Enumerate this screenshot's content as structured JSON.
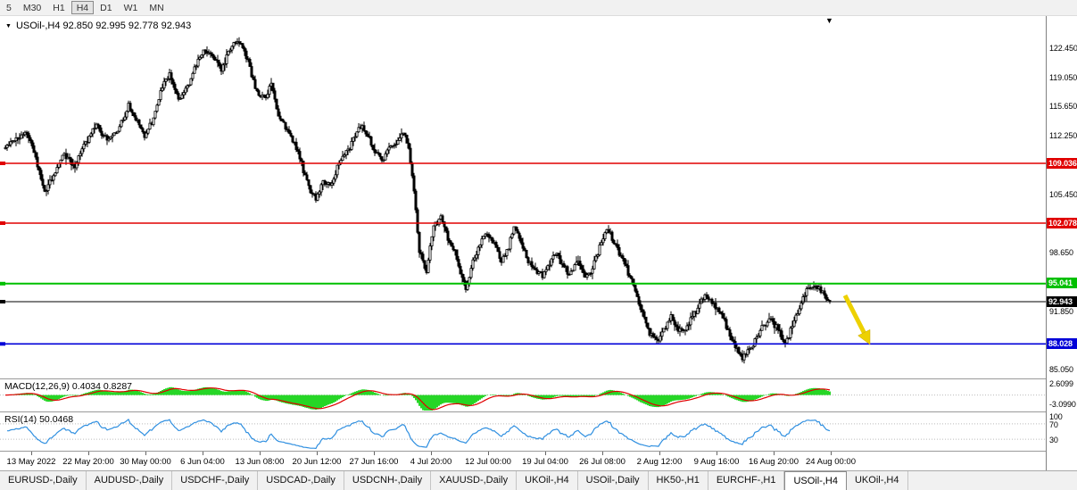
{
  "toolbar": {
    "timeframes": [
      "5",
      "M30",
      "H1",
      "H4",
      "D1",
      "W1",
      "MN"
    ],
    "active_index": 3
  },
  "legend": {
    "icon": "chart-symbol-triangle",
    "text": "USOil-,H4 92.850 92.995 92.778 92.943"
  },
  "panels": {
    "macd": {
      "label": "MACD(12,26,9) 0.4034 0.8287",
      "axis_max": "2.6099",
      "axis_min": "-3.0990"
    },
    "rsi": {
      "label": "RSI(14) 50.0468",
      "axis_labels": [
        "100",
        "70",
        "30"
      ]
    }
  },
  "tabs": {
    "items": [
      "EURUSD-,Daily",
      "AUDUSD-,Daily",
      "USDCHF-,Daily",
      "USDCAD-,Daily",
      "USDCNH-,Daily",
      "XAUUSD-,Daily",
      "UKOil-,H4",
      "USOil-,Daily",
      "HK50-,H1",
      "EURCHF-,H1",
      "USOil-,H4",
      "UKOil-,H4"
    ],
    "active_index": 10
  },
  "chart_data": {
    "type": "candlestick",
    "symbol": "USOil-",
    "timeframe": "H4",
    "current_ohlc": {
      "open": 92.85,
      "high": 92.995,
      "low": 92.778,
      "close": 92.943
    },
    "y_axis": {
      "visible_range": [
        84.0,
        126.2
      ],
      "tick_step": 3.4,
      "plain_labels": [
        122.45,
        119.05,
        115.65,
        112.25,
        105.45,
        98.65,
        91.85,
        85.05
      ]
    },
    "levels": [
      {
        "price": 109.036,
        "label": "109.036",
        "color": "#E00000",
        "width": 1.6
      },
      {
        "price": 102.078,
        "label": "102.078",
        "color": "#E00000",
        "width": 1.6
      },
      {
        "price": 95.041,
        "label": "95.041",
        "color": "#00C000",
        "width": 2
      },
      {
        "price": 92.943,
        "label": "92.943",
        "color": "#000000",
        "width": 1
      },
      {
        "price": 88.028,
        "label": "88.028",
        "color": "#0000D8",
        "width": 1.6
      }
    ],
    "x_labels": [
      "13 May 2022",
      "22 May 20:00",
      "30 May 00:00",
      "6 Jun 04:00",
      "13 Jun 08:00",
      "20 Jun 12:00",
      "27 Jun 16:00",
      "4 Jul 20:00",
      "12 Jul 00:00",
      "19 Jul 04:00",
      "26 Jul 08:00",
      "2 Aug 12:00",
      "9 Aug 16:00",
      "16 Aug 20:00",
      "24 Aug 00:00"
    ],
    "indicators": {
      "macd": {
        "params": "12,26,9",
        "values": [
          0.4034,
          0.8287
        ],
        "axis_max": 2.6099,
        "axis_min": -3.099,
        "histogram_color": "#00CE00",
        "signal_color": "#E00000"
      },
      "rsi": {
        "params": "14",
        "value": 50.0468,
        "levels": [
          70,
          30
        ],
        "line_color": "#2F8FE0"
      }
    },
    "annotations": [
      {
        "type": "arrow-down-right",
        "color": "#EDD100",
        "near_price_from": 93.8,
        "near_price_to": 88.6
      }
    ],
    "price_path": [
      [
        6,
        110.8
      ],
      [
        18,
        111.8
      ],
      [
        30,
        112.8
      ],
      [
        40,
        109.5
      ],
      [
        50,
        105.8
      ],
      [
        60,
        107.5
      ],
      [
        72,
        110.2
      ],
      [
        84,
        108.8
      ],
      [
        96,
        111.5
      ],
      [
        108,
        113.4
      ],
      [
        120,
        111.8
      ],
      [
        132,
        112.8
      ],
      [
        144,
        115.7
      ],
      [
        154,
        113.9
      ],
      [
        162,
        112.2
      ],
      [
        172,
        114.2
      ],
      [
        182,
        118.0
      ],
      [
        190,
        119.4
      ],
      [
        200,
        116.4
      ],
      [
        210,
        117.8
      ],
      [
        220,
        120.6
      ],
      [
        230,
        122.4
      ],
      [
        240,
        121.0
      ],
      [
        248,
        119.8
      ],
      [
        256,
        122.0
      ],
      [
        264,
        123.3
      ],
      [
        272,
        122.6
      ],
      [
        280,
        120.2
      ],
      [
        288,
        117.3
      ],
      [
        296,
        116.6
      ],
      [
        304,
        118.2
      ],
      [
        312,
        114.6
      ],
      [
        320,
        113.2
      ],
      [
        328,
        111.8
      ],
      [
        336,
        109.6
      ],
      [
        346,
        106.2
      ],
      [
        354,
        104.9
      ],
      [
        362,
        107.2
      ],
      [
        370,
        106.4
      ],
      [
        378,
        108.6
      ],
      [
        386,
        109.8
      ],
      [
        394,
        111.2
      ],
      [
        404,
        113.2
      ],
      [
        412,
        112.4
      ],
      [
        420,
        110.4
      ],
      [
        428,
        109.4
      ],
      [
        436,
        110.8
      ],
      [
        444,
        111.4
      ],
      [
        452,
        112.4
      ],
      [
        458,
        111.0
      ],
      [
        464,
        106.0
      ],
      [
        470,
        98.8
      ],
      [
        478,
        96.6
      ],
      [
        486,
        101.8
      ],
      [
        494,
        102.6
      ],
      [
        502,
        100.4
      ],
      [
        510,
        98.8
      ],
      [
        516,
        96.0
      ],
      [
        522,
        94.4
      ],
      [
        530,
        97.6
      ],
      [
        538,
        99.8
      ],
      [
        546,
        100.8
      ],
      [
        554,
        99.6
      ],
      [
        562,
        97.6
      ],
      [
        570,
        99.2
      ],
      [
        576,
        101.8
      ],
      [
        584,
        99.8
      ],
      [
        592,
        97.6
      ],
      [
        600,
        96.8
      ],
      [
        608,
        96.0
      ],
      [
        616,
        97.6
      ],
      [
        624,
        98.6
      ],
      [
        632,
        96.8
      ],
      [
        640,
        96.2
      ],
      [
        648,
        98.0
      ],
      [
        656,
        95.6
      ],
      [
        664,
        96.8
      ],
      [
        672,
        99.4
      ],
      [
        680,
        101.6
      ],
      [
        688,
        99.8
      ],
      [
        696,
        98.2
      ],
      [
        704,
        96.4
      ],
      [
        712,
        94.2
      ],
      [
        720,
        91.6
      ],
      [
        728,
        89.2
      ],
      [
        736,
        88.2
      ],
      [
        744,
        89.8
      ],
      [
        752,
        91.2
      ],
      [
        760,
        89.4
      ],
      [
        768,
        89.8
      ],
      [
        776,
        91.0
      ],
      [
        784,
        92.8
      ],
      [
        792,
        93.8
      ],
      [
        800,
        92.6
      ],
      [
        808,
        91.4
      ],
      [
        816,
        89.6
      ],
      [
        824,
        87.8
      ],
      [
        832,
        86.6
      ],
      [
        840,
        87.2
      ],
      [
        848,
        88.8
      ],
      [
        856,
        90.2
      ],
      [
        864,
        90.8
      ],
      [
        872,
        89.6
      ],
      [
        880,
        88.0
      ],
      [
        888,
        90.4
      ],
      [
        896,
        92.4
      ],
      [
        904,
        94.2
      ],
      [
        912,
        94.9
      ],
      [
        920,
        94.2
      ],
      [
        926,
        93.4
      ],
      [
        930,
        92.94
      ]
    ]
  }
}
